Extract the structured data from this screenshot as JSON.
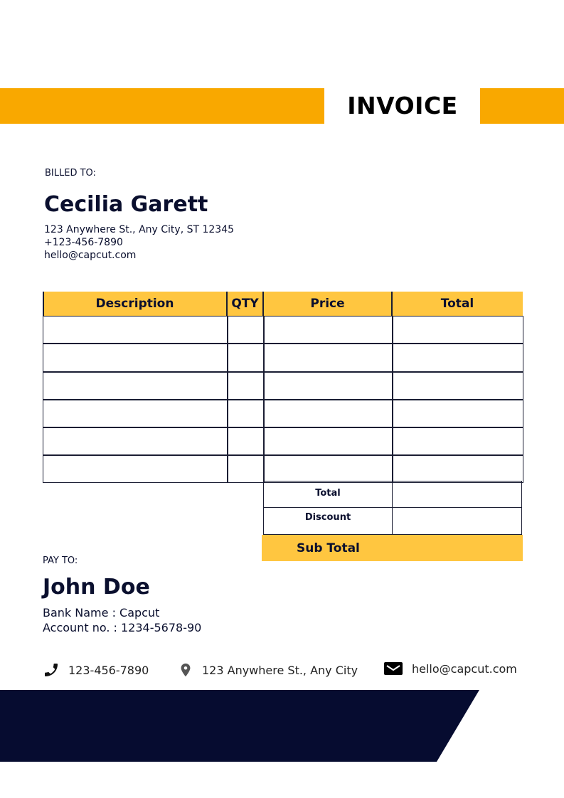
{
  "header": {
    "title": "INVOICE",
    "accent": "#F9A800"
  },
  "billed_to": {
    "label": "BILLED TO:",
    "name": "Cecilia Garett",
    "address": "123 Anywhere St., Any City, ST 12345",
    "phone": "+123-456-7890",
    "email": "hello@capcut.com"
  },
  "table": {
    "columns": [
      "Description",
      "QTY",
      "Price",
      "Total"
    ],
    "rows": [
      [
        "",
        "",
        "",
        ""
      ],
      [
        "",
        "",
        "",
        ""
      ],
      [
        "",
        "",
        "",
        ""
      ],
      [
        "",
        "",
        "",
        ""
      ],
      [
        "",
        "",
        "",
        ""
      ],
      [
        "",
        "",
        "",
        ""
      ]
    ],
    "header_color": "#FFC640"
  },
  "summary": {
    "total_label": "Total",
    "total_value": "",
    "discount_label": "Discount",
    "discount_value": "",
    "subtotal_label": "Sub Total"
  },
  "pay_to": {
    "label": "PAY TO:",
    "name": "John Doe",
    "bank": "Bank Name : Capcut",
    "account": "Account no. : 1234-5678-90"
  },
  "footer": {
    "phone": "123-456-7890",
    "address": "123 Anywhere St., Any City",
    "email": "hello@capcut.com",
    "band_color": "#060C30"
  }
}
